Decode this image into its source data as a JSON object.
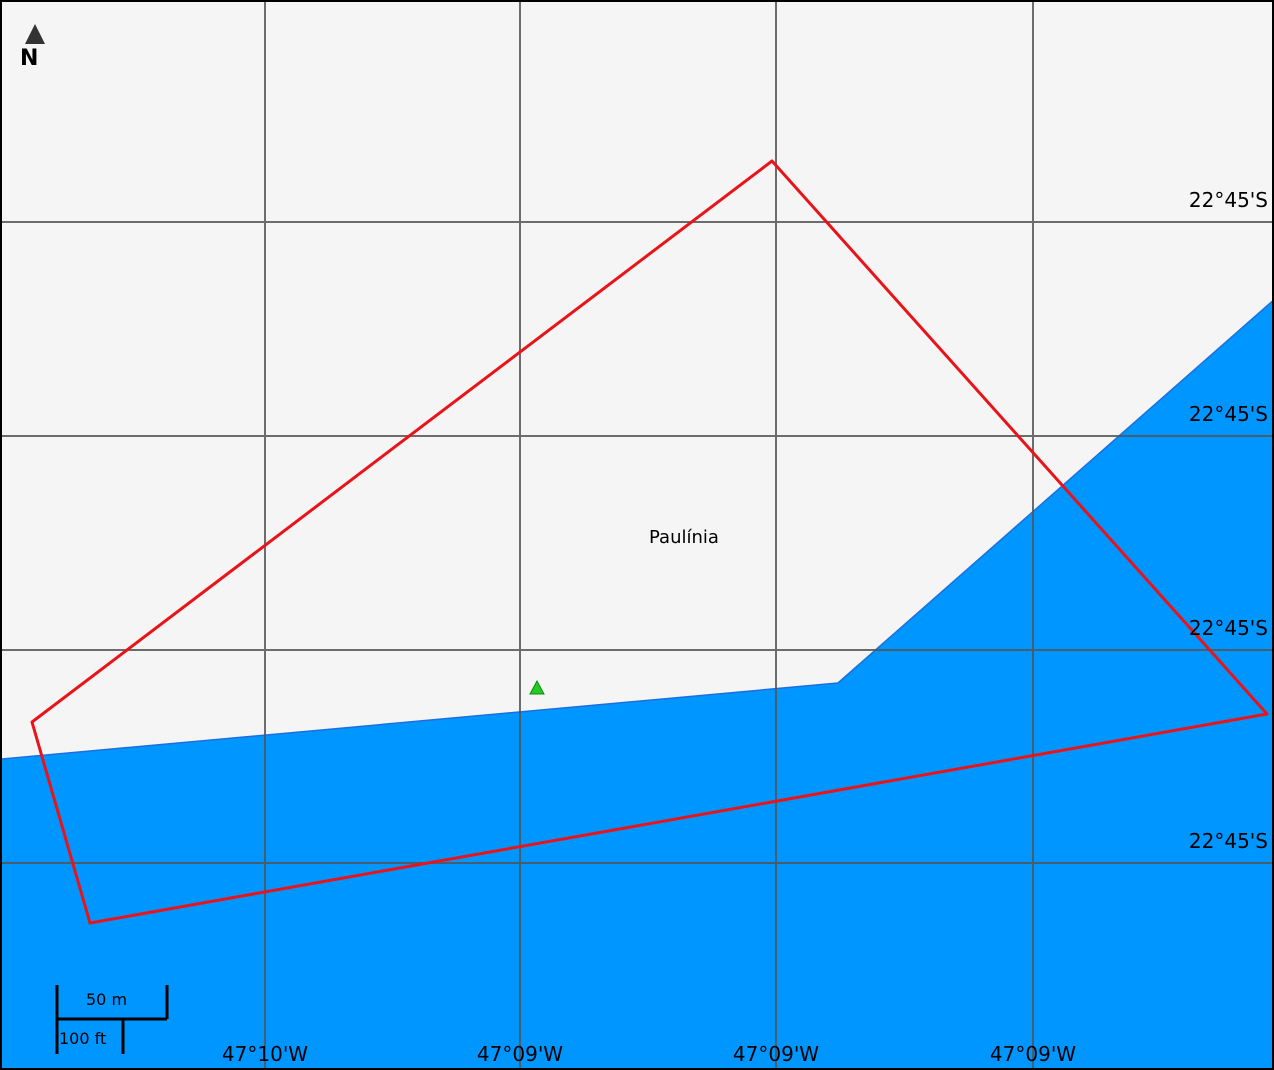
{
  "map": {
    "north_arrow": {
      "letter": "N",
      "icon": "north-arrow-icon"
    },
    "place": {
      "name": "Paulínia"
    },
    "latitude_labels": [
      "22°45'S",
      "22°45'S",
      "22°45'S",
      "22°45'S"
    ],
    "longitude_labels": [
      "47°10'W",
      "47°09'W",
      "47°09'W",
      "47°09'W"
    ],
    "scale_bar": {
      "metric": "50 m",
      "imperial": "100 ft"
    },
    "colors": {
      "land": "#f5f5f5",
      "water": "#0096ff",
      "graticule": "#555555",
      "boundary": "#e8141a",
      "marker": "#22cc22"
    }
  }
}
